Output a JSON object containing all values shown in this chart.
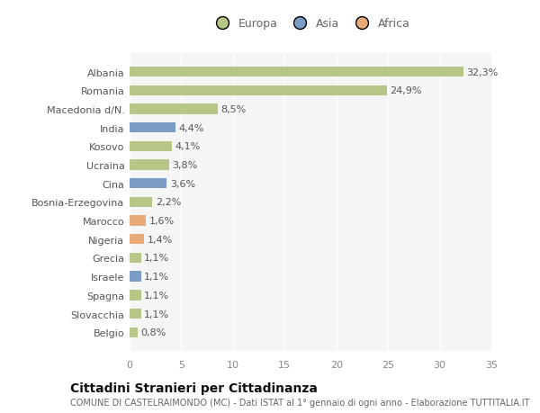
{
  "categories": [
    "Belgio",
    "Slovacchia",
    "Spagna",
    "Israele",
    "Grecia",
    "Nigeria",
    "Marocco",
    "Bosnia-Erzegovina",
    "Cina",
    "Ucraina",
    "Kosovo",
    "India",
    "Macedonia d/N.",
    "Romania",
    "Albania"
  ],
  "values": [
    0.8,
    1.1,
    1.1,
    1.1,
    1.1,
    1.4,
    1.6,
    2.2,
    3.6,
    3.8,
    4.1,
    4.4,
    8.5,
    24.9,
    32.3
  ],
  "labels": [
    "0,8%",
    "1,1%",
    "1,1%",
    "1,1%",
    "1,1%",
    "1,4%",
    "1,6%",
    "2,2%",
    "3,6%",
    "3,8%",
    "4,1%",
    "4,4%",
    "8,5%",
    "24,9%",
    "32,3%"
  ],
  "continent": [
    "Europa",
    "Europa",
    "Europa",
    "Asia",
    "Europa",
    "Africa",
    "Africa",
    "Europa",
    "Asia",
    "Europa",
    "Europa",
    "Asia",
    "Europa",
    "Europa",
    "Europa"
  ],
  "colors": {
    "Europa": "#b5c687",
    "Asia": "#7b9cc4",
    "Africa": "#e8aa78"
  },
  "xlim": [
    0,
    35
  ],
  "xticks": [
    0,
    5,
    10,
    15,
    20,
    25,
    30,
    35
  ],
  "title": "Cittadini Stranieri per Cittadinanza",
  "subtitle": "COMUNE DI CASTELRAIMONDO (MC) - Dati ISTAT al 1° gennaio di ogni anno - Elaborazione TUTTITALIA.IT",
  "bg_color": "#ffffff",
  "plot_bg_color": "#f5f5f5",
  "grid_color": "#ffffff",
  "bar_height": 0.55,
  "label_fontsize": 8,
  "tick_fontsize": 8,
  "title_fontsize": 10,
  "subtitle_fontsize": 7
}
